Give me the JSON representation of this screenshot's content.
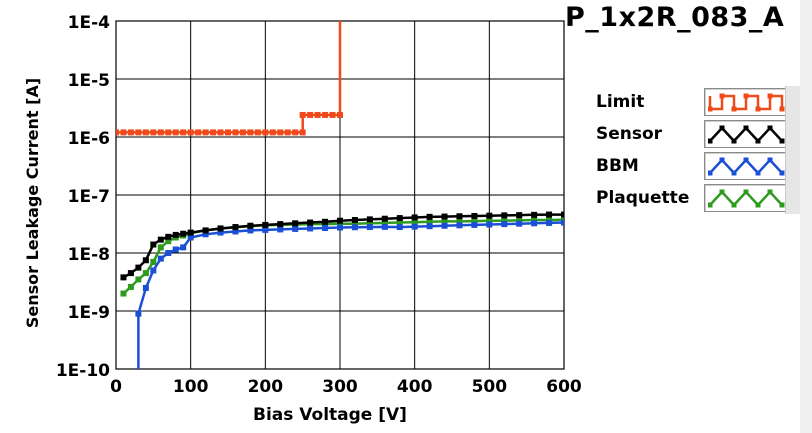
{
  "title": "P_1x2R_083_A",
  "colors": {
    "limit": "#f04a1c",
    "sensor": "#000000",
    "bbm": "#1a4fd6",
    "plaquette": "#2e9b1e",
    "grid": "#000000",
    "background": "#ffffff"
  },
  "legend": {
    "items": [
      {
        "label": "Limit",
        "series": "limit",
        "swatch": "square-wave"
      },
      {
        "label": "Sensor",
        "series": "sensor",
        "swatch": "zigzag"
      },
      {
        "label": "BBM",
        "series": "bbm",
        "swatch": "zigzag"
      },
      {
        "label": "Plaquette",
        "series": "plaquette",
        "swatch": "zigzag"
      }
    ]
  },
  "chart_data": {
    "type": "line",
    "xlabel": "Bias Voltage [V]",
    "ylabel": "Sensor Leakage Current [A]",
    "xlim": [
      0,
      600
    ],
    "ylim": [
      1e-10,
      0.0001
    ],
    "yscale": "log",
    "grid": true,
    "legend_position": "right",
    "x_ticks": [
      {
        "value": 0,
        "label": "0"
      },
      {
        "value": 100,
        "label": "100"
      },
      {
        "value": 200,
        "label": "200"
      },
      {
        "value": 300,
        "label": "300"
      },
      {
        "value": 400,
        "label": "400"
      },
      {
        "value": 500,
        "label": "500"
      },
      {
        "value": 600,
        "label": "600"
      }
    ],
    "y_ticks": [
      {
        "value": 0.0001,
        "label": "1E-4"
      },
      {
        "value": 1e-05,
        "label": "1E-5"
      },
      {
        "value": 1e-06,
        "label": "1E-6"
      },
      {
        "value": 1e-07,
        "label": "1E-7"
      },
      {
        "value": 1e-08,
        "label": "1E-8"
      },
      {
        "value": 1e-09,
        "label": "1E-9"
      },
      {
        "value": 1e-10,
        "label": "1E-10"
      }
    ],
    "series": [
      {
        "name": "Limit",
        "key": "limit",
        "step": true,
        "x": [
          0,
          10,
          20,
          30,
          40,
          50,
          60,
          70,
          80,
          90,
          100,
          110,
          120,
          130,
          140,
          150,
          160,
          170,
          180,
          190,
          200,
          210,
          220,
          230,
          240,
          250,
          250,
          260,
          270,
          280,
          290,
          300,
          300
        ],
        "y": [
          1.2e-06,
          1.2e-06,
          1.2e-06,
          1.2e-06,
          1.2e-06,
          1.2e-06,
          1.2e-06,
          1.2e-06,
          1.2e-06,
          1.2e-06,
          1.2e-06,
          1.2e-06,
          1.2e-06,
          1.2e-06,
          1.2e-06,
          1.2e-06,
          1.2e-06,
          1.2e-06,
          1.2e-06,
          1.2e-06,
          1.2e-06,
          1.2e-06,
          1.2e-06,
          1.2e-06,
          1.2e-06,
          1.2e-06,
          2.4e-06,
          2.4e-06,
          2.4e-06,
          2.4e-06,
          2.4e-06,
          2.4e-06,
          0.0001
        ]
      },
      {
        "name": "Sensor",
        "key": "sensor",
        "x": [
          10,
          20,
          30,
          40,
          50,
          60,
          70,
          80,
          90,
          100,
          120,
          140,
          160,
          180,
          200,
          220,
          240,
          260,
          280,
          300,
          320,
          340,
          360,
          380,
          400,
          420,
          440,
          460,
          480,
          500,
          520,
          540,
          560,
          580,
          600
        ],
        "y": [
          3.8e-09,
          4.5e-09,
          5.6e-09,
          7.5e-09,
          1.4e-08,
          1.7e-08,
          1.9e-08,
          2.05e-08,
          2.15e-08,
          2.25e-08,
          2.45e-08,
          2.65e-08,
          2.8e-08,
          2.95e-08,
          3.05e-08,
          3.15e-08,
          3.25e-08,
          3.35e-08,
          3.45e-08,
          3.6e-08,
          3.7e-08,
          3.8e-08,
          3.9e-08,
          4e-08,
          4.1e-08,
          4.2e-08,
          4.25e-08,
          4.3e-08,
          4.35e-08,
          4.4e-08,
          4.45e-08,
          4.5e-08,
          4.55e-08,
          4.6e-08,
          4.6e-08
        ]
      },
      {
        "name": "BBM",
        "key": "bbm",
        "x": [
          30,
          30,
          40,
          50,
          60,
          70,
          80,
          90,
          100,
          120,
          140,
          160,
          180,
          200,
          220,
          240,
          260,
          280,
          300,
          320,
          340,
          360,
          380,
          400,
          420,
          440,
          460,
          480,
          500,
          520,
          540,
          560,
          580,
          600
        ],
        "y": [
          1e-10,
          9e-10,
          2.5e-09,
          5e-09,
          8e-09,
          1e-08,
          1.15e-08,
          1.25e-08,
          1.85e-08,
          2.1e-08,
          2.25e-08,
          2.35e-08,
          2.45e-08,
          2.5e-08,
          2.55e-08,
          2.6e-08,
          2.65e-08,
          2.7e-08,
          2.75e-08,
          2.78e-08,
          2.8e-08,
          2.82e-08,
          2.8e-08,
          2.85e-08,
          2.9e-08,
          2.95e-08,
          3e-08,
          3.05e-08,
          3.1e-08,
          3.15e-08,
          3.2e-08,
          3.25e-08,
          3.3e-08,
          3.35e-08
        ]
      },
      {
        "name": "Plaquette",
        "key": "plaquette",
        "x": [
          10,
          20,
          30,
          40,
          50,
          60,
          70,
          80,
          90,
          100,
          120,
          140,
          160,
          180,
          200,
          220,
          240,
          260,
          280,
          300,
          320,
          340,
          360,
          380,
          400,
          420,
          440,
          460,
          480,
          500,
          520,
          540,
          560,
          580,
          600
        ],
        "y": [
          2e-09,
          2.6e-09,
          3.5e-09,
          4.5e-09,
          7e-09,
          1.25e-08,
          1.6e-08,
          1.85e-08,
          2e-08,
          2.2e-08,
          2.45e-08,
          2.65e-08,
          2.8e-08,
          2.9e-08,
          3e-08,
          3.05e-08,
          3.1e-08,
          3.15e-08,
          3.15e-08,
          3.2e-08,
          3.2e-08,
          3.25e-08,
          3.3e-08,
          3.35e-08,
          3.4e-08,
          3.45e-08,
          3.5e-08,
          3.5e-08,
          3.55e-08,
          3.6e-08,
          3.6e-08,
          3.65e-08,
          3.7e-08,
          3.7e-08,
          3.75e-08
        ]
      }
    ]
  }
}
